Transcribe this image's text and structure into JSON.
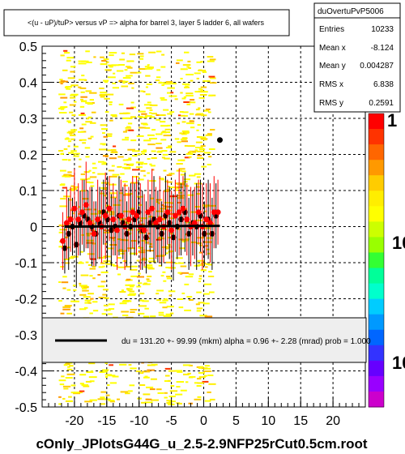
{
  "chart_data": {
    "type": "scatter",
    "title": "<(u - uP)/tuP> versus   vP => alpha for barrel 3, layer 5 ladder 6, all  wafers",
    "file_label": "cOnly_JPlotsG44G_u_2.5-2.9NFP25rCut0.5cm.root",
    "xlim": [
      -25,
      25
    ],
    "ylim": [
      -0.5,
      0.5
    ],
    "x_ticks": [
      "-20",
      "-15",
      "-10",
      "-5",
      "0",
      "5",
      "10",
      "15",
      "20"
    ],
    "y_ticks": [
      "0.5",
      "0.4",
      "0.3",
      "0.2",
      "0.1",
      "0",
      "-0.1",
      "-0.2",
      "-0.3",
      "-0.4",
      "-0.5"
    ],
    "grid": true,
    "stats": {
      "name": "duOvertuPvP5006",
      "rows": [
        {
          "label": "Entries",
          "value": "10233"
        },
        {
          "label": "Mean x",
          "value": "-8.124"
        },
        {
          "label": "Mean y",
          "value": "0.004287"
        },
        {
          "label": "RMS x",
          "value": "6.838"
        },
        {
          "label": "RMS y",
          "value": "0.2591"
        }
      ]
    },
    "fit_legend": "du =  131.20 +-  99.99 (mkm) alpha =    0.96 +-  2.28 (mrad) prob = 1.000",
    "palette_labels": [
      "1",
      "10",
      "10"
    ],
    "fit_line": {
      "x": [
        -21.5,
        2.5
      ],
      "y": [
        0.0,
        0.002
      ]
    },
    "series": [
      {
        "color": "#000000",
        "x": [
          -21.5,
          -20.9,
          -20.3,
          -19.7,
          -19.1,
          -18.5,
          -17.9,
          -17.3,
          -16.7,
          -16.1,
          -15.5,
          -14.9,
          -14.3,
          -13.7,
          -13.1,
          -12.5,
          -11.9,
          -11.3,
          -10.7,
          -10.1,
          -9.5,
          -8.9,
          -8.3,
          -7.7,
          -7.1,
          -6.5,
          -5.9,
          -5.3,
          -4.7,
          -4.1,
          -3.5,
          -2.9,
          -2.3,
          -1.7,
          -1.1,
          -0.5,
          0.1,
          0.7,
          1.3,
          1.9,
          2.5
        ],
        "y": [
          -0.06,
          -0.02,
          0.0,
          -0.05,
          0.01,
          0.03,
          0.02,
          0.0,
          -0.02,
          0.01,
          0.04,
          0.02,
          -0.01,
          0.0,
          0.03,
          0.01,
          -0.02,
          0.0,
          0.02,
          0.04,
          -0.01,
          -0.03,
          0.01,
          0.02,
          0.0,
          -0.02,
          0.03,
          0.01,
          -0.03,
          0.0,
          0.02,
          0.04,
          -0.02,
          0.01,
          0.0,
          0.03,
          -0.02,
          0.02,
          -0.02,
          0.03,
          0.24
        ],
        "err": [
          0.07,
          0.1,
          0.08,
          0.12,
          0.09,
          0.1,
          0.08,
          0.11,
          0.09,
          0.1,
          0.09,
          0.12,
          0.1,
          0.08,
          0.11,
          0.1,
          0.09,
          0.12,
          0.1,
          0.09,
          0.11,
          0.1,
          0.08,
          0.12,
          0.1,
          0.09,
          0.11,
          0.1,
          0.12,
          0.09,
          0.1,
          0.11,
          0.1,
          0.09,
          0.12,
          0.1,
          0.09,
          0.11,
          0.1,
          0.09,
          0.0
        ]
      },
      {
        "color": "#ff0000",
        "x": [
          -21.8,
          -21.2,
          -20.6,
          -20.0,
          -19.4,
          -18.8,
          -18.2,
          -17.6,
          -17.0,
          -16.4,
          -15.8,
          -15.2,
          -14.6,
          -14.0,
          -13.4,
          -12.8,
          -12.2,
          -11.6,
          -11.0,
          -10.4,
          -9.8,
          -9.2,
          -8.6,
          -8.0,
          -7.4,
          -6.8,
          -6.2,
          -5.6,
          -5.0,
          -4.4,
          -3.8,
          -3.2,
          -2.6,
          -2.0,
          -1.4,
          -0.8,
          -0.2,
          0.4,
          1.0,
          1.6,
          2.2
        ],
        "y": [
          -0.04,
          0.01,
          0.02,
          0.05,
          0.02,
          0.04,
          0.06,
          0.01,
          -0.02,
          0.02,
          0.0,
          0.03,
          0.05,
          0.02,
          -0.01,
          0.03,
          0.0,
          0.02,
          0.04,
          0.03,
          0.0,
          -0.01,
          0.04,
          0.05,
          0.01,
          0.02,
          0.0,
          0.04,
          -0.01,
          0.03,
          0.04,
          0.05,
          0.02,
          0.0,
          0.01,
          0.04,
          0.0,
          0.02,
          0.01,
          0.04,
          0.04
        ],
        "err": [
          0.08,
          0.1,
          0.09,
          0.11,
          0.1,
          0.09,
          0.12,
          0.1,
          0.09,
          0.11,
          0.1,
          0.12,
          0.09,
          0.1,
          0.11,
          0.1,
          0.12,
          0.09,
          0.1,
          0.11,
          0.12,
          0.1,
          0.09,
          0.11,
          0.1,
          0.12,
          0.1,
          0.09,
          0.11,
          0.1,
          0.12,
          0.09,
          0.1,
          0.11,
          0.1,
          0.09,
          0.12,
          0.1,
          0.11,
          0.1,
          0.09
        ]
      }
    ]
  }
}
